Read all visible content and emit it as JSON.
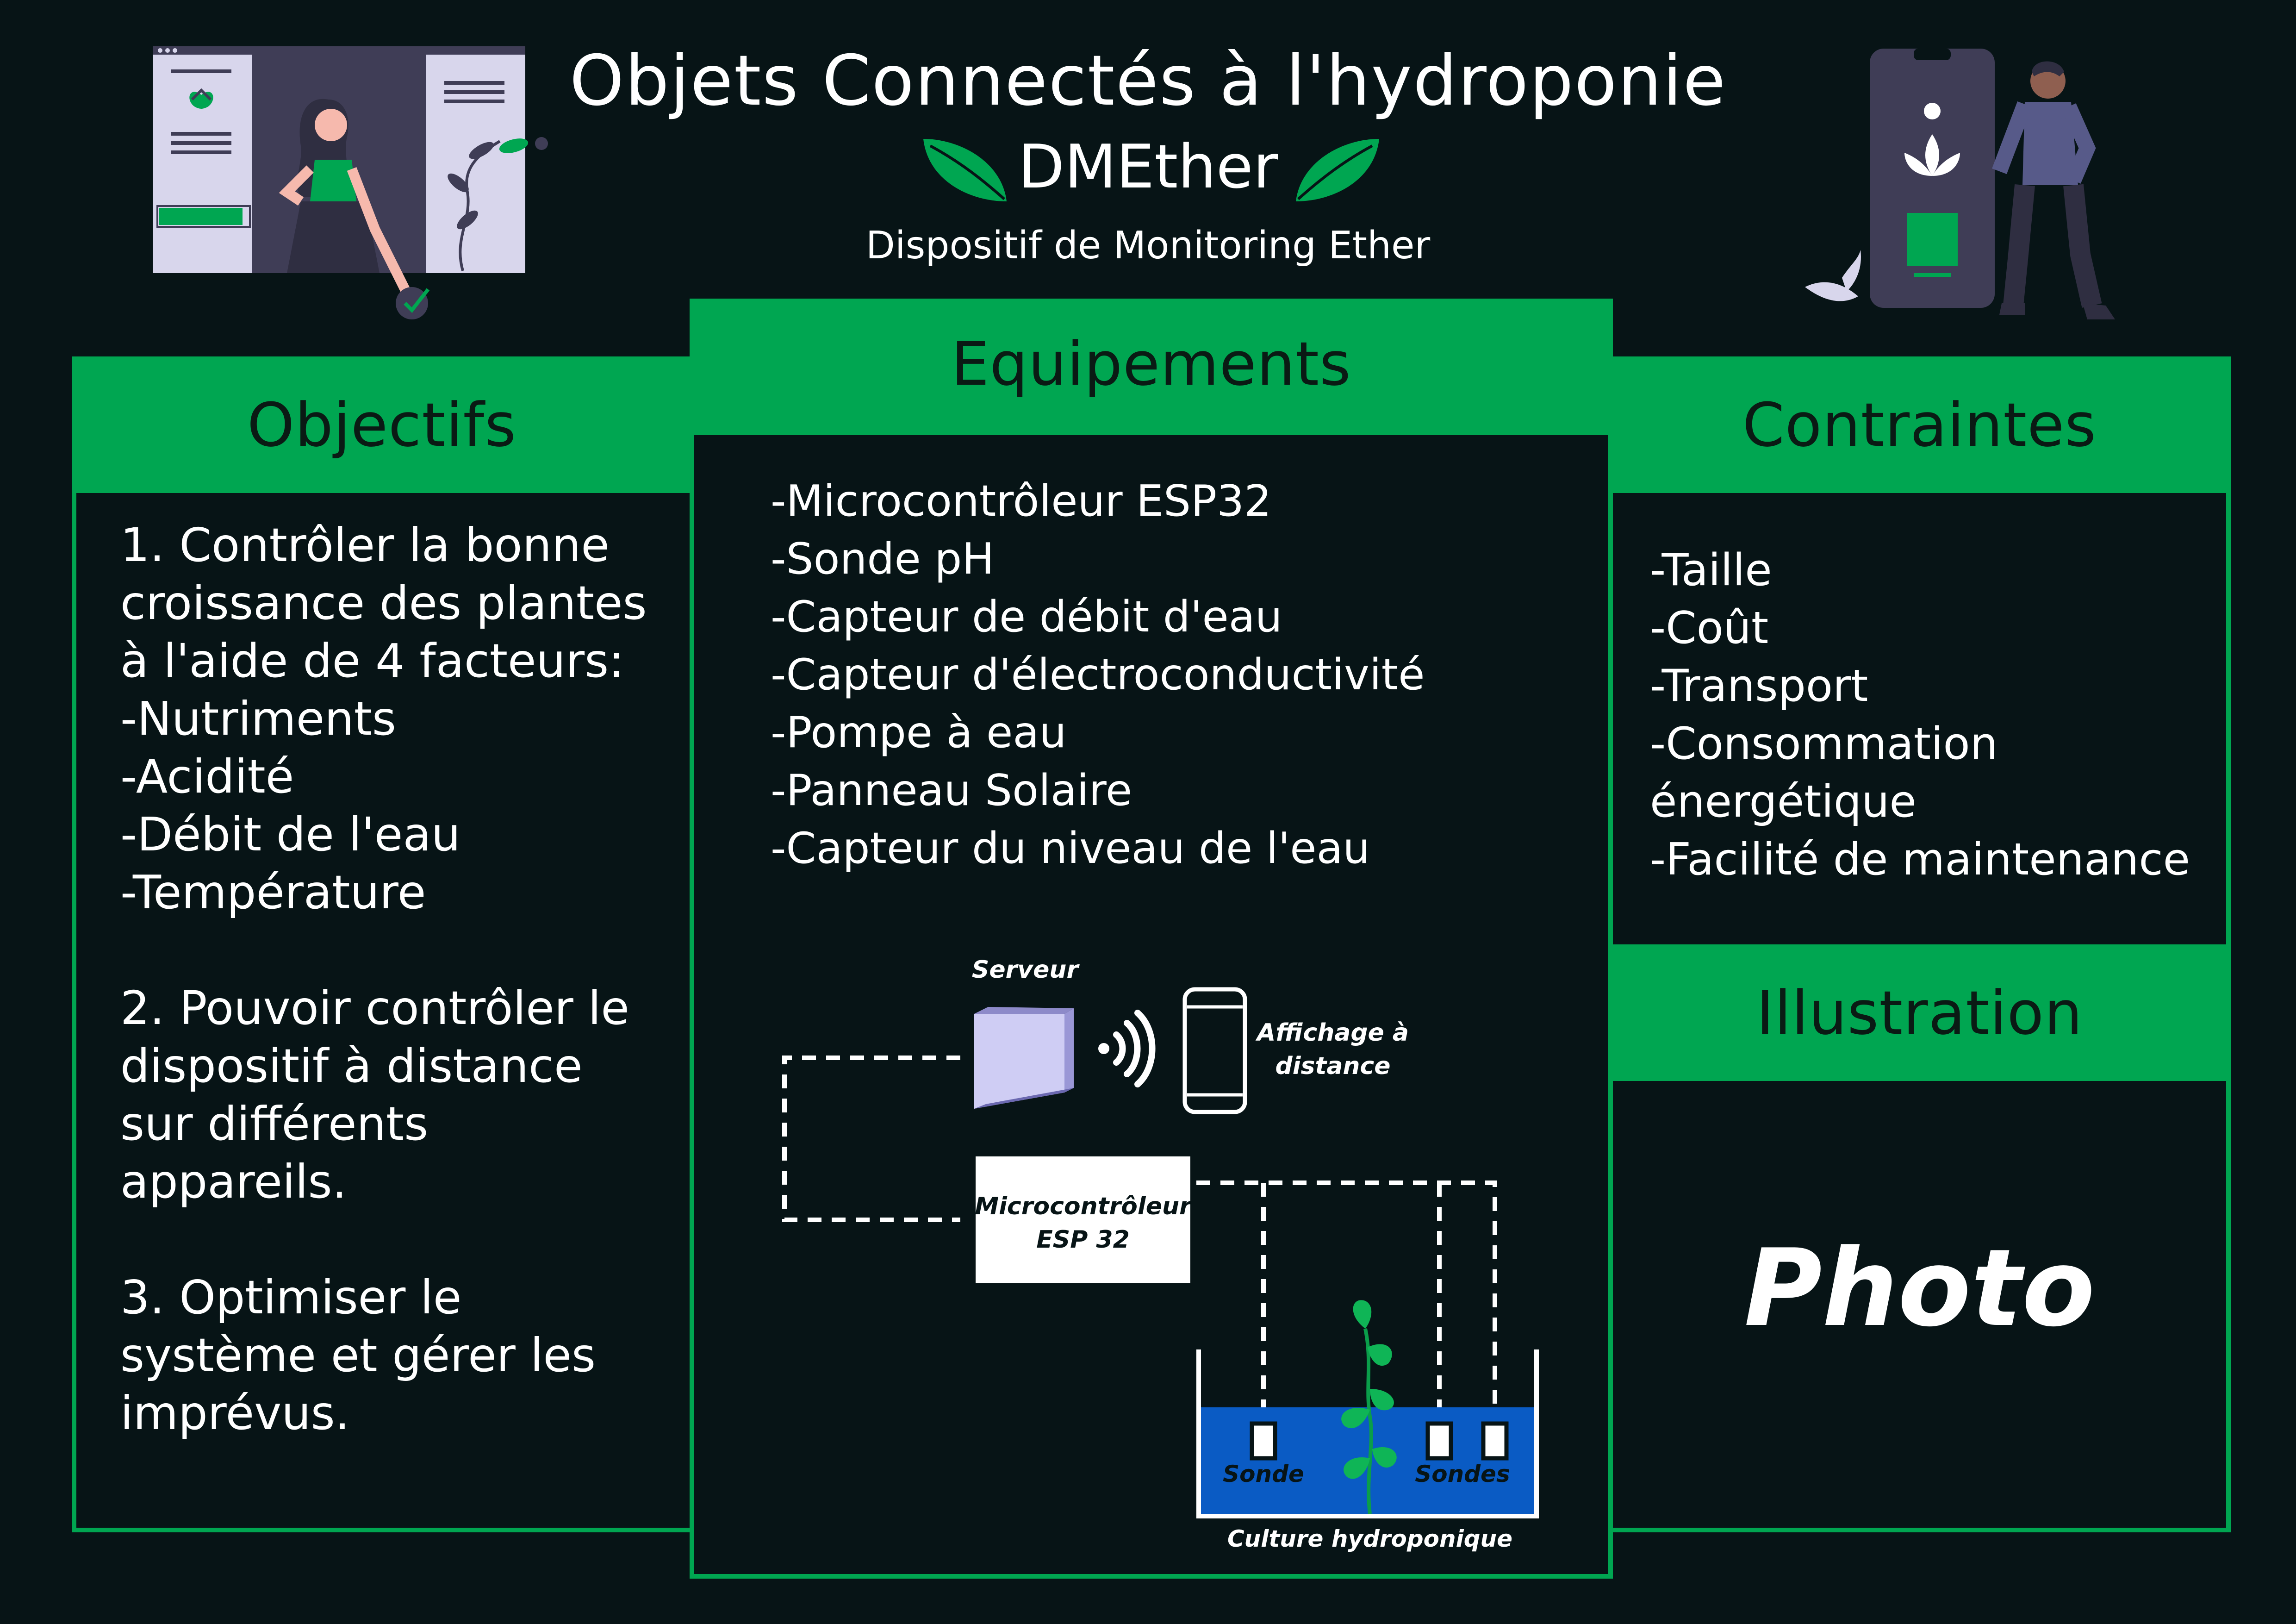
{
  "header": {
    "title": "Objets Connectés à l'hydroponie",
    "subtitle": "DMEther",
    "tagline": "Dispositif de Monitoring Ether"
  },
  "colors": {
    "accent_green": "#00a651",
    "background": "#071416",
    "water_blue": "#0a5bc4",
    "illustration_lavender": "#d8d6ec",
    "illustration_dark": "#3f3d56"
  },
  "objectifs": {
    "heading": "Objectifs",
    "lines": [
      "1. Contrôler la bonne",
      "croissance des plantes",
      "à l'aide de 4 facteurs:",
      "-Nutriments",
      "-Acidité",
      "-Débit de l'eau",
      "-Température"
    ],
    "lines2": [
      "2. Pouvoir contrôler le",
      "dispositif à distance",
      "sur différents",
      "appareils."
    ],
    "lines3": [
      "3. Optimiser le",
      "système et gérer les",
      "imprévus."
    ]
  },
  "equipements": {
    "heading": "Equipements",
    "items": [
      "-Microcontrôleur ESP32",
      "-Sonde pH",
      "-Capteur de débit d'eau",
      "-Capteur d'électroconductivité",
      "-Pompe à eau",
      "-Panneau Solaire",
      "-Capteur du niveau de l'eau"
    ],
    "diagram": {
      "server_label": "Serveur",
      "remote_label_1": "Affichage à",
      "remote_label_2": "distance",
      "mcu_label_1": "Microcontrôleur",
      "mcu_label_2": "ESP 32",
      "probe_label": "Sonde",
      "probes_label": "Sondes",
      "culture_label": "Culture hydroponique",
      "icons": [
        "server-icon",
        "wifi-icon",
        "smartphone-icon",
        "plant-icon"
      ]
    }
  },
  "contraintes": {
    "heading": "Contraintes",
    "items": [
      "-Taille",
      "-Coût",
      "-Transport",
      "-Consommation",
      "énergétique",
      "-Facilité de maintenance"
    ]
  },
  "illustration": {
    "heading": "Illustration",
    "placeholder": "Photo"
  },
  "decor": {
    "icons": [
      "leaf-icon",
      "woman-dashboard-illustration",
      "man-phone-illustration"
    ]
  }
}
